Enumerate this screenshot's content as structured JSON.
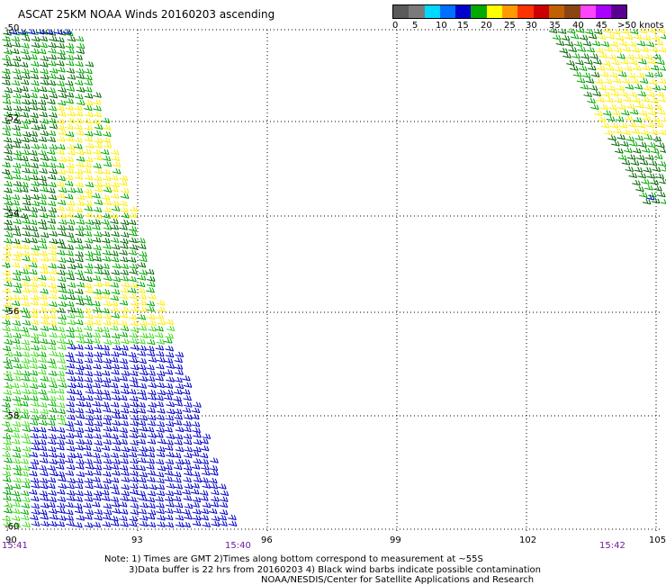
{
  "title": "ASCAT 25KM NOAA Winds 20160203 ascending",
  "legend": {
    "unit": "knots",
    "labels": [
      "0",
      "5",
      "10",
      "15",
      "20",
      "25",
      "30",
      "35",
      "40",
      "45",
      ">50 knots"
    ],
    "colors": [
      "#5a5a5a",
      "#7a7a7a",
      "#00d8ff",
      "#0070ff",
      "#0000cc",
      "#00aa00",
      "#ffff00",
      "#ff9900",
      "#ff3300",
      "#cc0000",
      "#c06000",
      "#8b4513",
      "#ff44ff",
      "#aa00ff",
      "#5a0090"
    ]
  },
  "axes": {
    "lon_labels": [
      "90",
      "93",
      "96",
      "99",
      "102",
      "105"
    ],
    "lat_labels": [
      "-50",
      "-52",
      "-54",
      "-56",
      "-58",
      "-60"
    ]
  },
  "times": [
    "15:41",
    "15:40",
    "15:42"
  ],
  "notes": {
    "line1": "Note: 1) Times are GMT 2)Times along bottom correspond to measurement at ~55S",
    "line2": "3)Data buffer is 22 hrs from 20160203 4) Black wind barbs indicate possible contamination",
    "line3": "NOAA/NESDIS/Center for Satellite Applications and Research"
  },
  "barb_colors": {
    "blue": "#0000cc",
    "green": "#00aa00",
    "lightgreen": "#44dd22",
    "yellow": "#ffee00",
    "darkgreen": "#006600"
  }
}
